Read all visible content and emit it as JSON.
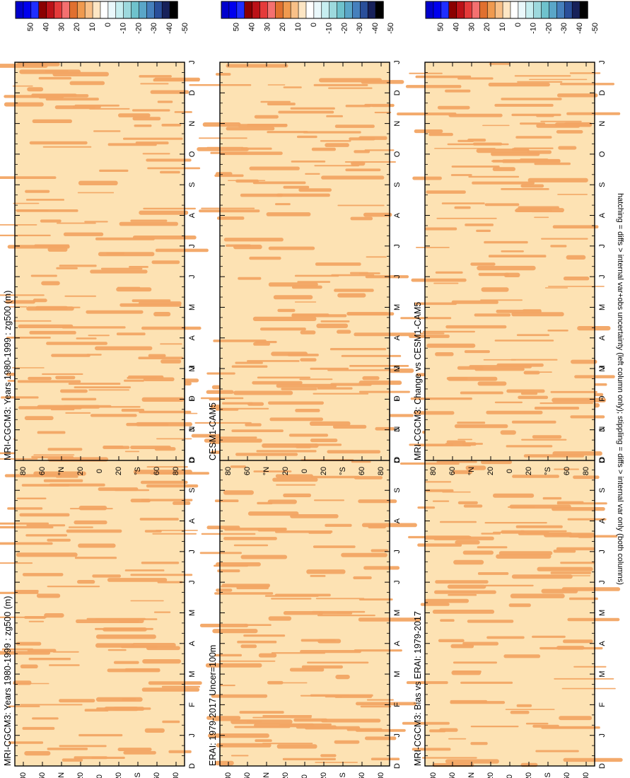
{
  "footnote": "hatching = diffs > internal var+obs uncertainty (left column only); stippling = diffs > internal var only (both columns)",
  "colorbar": {
    "labels": [
      "50",
      "40",
      "30",
      "20",
      "10",
      "0",
      "-10",
      "-20",
      "-30",
      "-40",
      "-50"
    ],
    "colors": [
      "#0000cc",
      "#0000ee",
      "#1f2eff",
      "#8b0000",
      "#bb1117",
      "#e53a3a",
      "#f47070",
      "#e0702f",
      "#f09a4f",
      "#f8c088",
      "#fde6c4",
      "#ffffff",
      "#eaf8fb",
      "#c7eef0",
      "#9dd9dd",
      "#6fc2cc",
      "#5aa6c8",
      "#4680bd",
      "#2a4f9a",
      "#17215a",
      "#000000"
    ]
  },
  "fill_colors": {
    "light": "#fde2b3",
    "dark": "#f2a564"
  },
  "chart_data": [
    {
      "type": "heatmap",
      "title": "MRI-CGCM3: Years 1980-1999 : zg500 (m)",
      "x_ticks": [
        "D",
        "J",
        "F",
        "M",
        "A",
        "M",
        "J",
        "J",
        "A",
        "S",
        "O",
        "N",
        "D",
        "J"
      ],
      "y_ticks": [
        "80",
        "60",
        "°N",
        "20",
        "0",
        "20",
        "°S",
        "60",
        "80"
      ],
      "values_range": [
        -50,
        50
      ]
    },
    {
      "type": "heatmap",
      "title": "MRI-CGCM3: Years 1980-1999 : zg500 (m)",
      "x_ticks": [
        "D",
        "J",
        "F",
        "M",
        "A",
        "M",
        "J",
        "J",
        "A",
        "S",
        "O",
        "N",
        "D",
        "J"
      ],
      "y_ticks": [
        "80",
        "60",
        "°N",
        "20",
        "0",
        "20",
        "°S",
        "60",
        "80"
      ],
      "values_range": [
        -50,
        50
      ]
    },
    {
      "type": "heatmap",
      "title": "ERAI: 1979-2017 Uncer=100m",
      "x_ticks": [
        "D",
        "J",
        "F",
        "M",
        "A",
        "M",
        "J",
        "J",
        "A",
        "S",
        "O",
        "N",
        "D",
        "J"
      ],
      "y_ticks": [
        "80",
        "60",
        "°N",
        "20",
        "0",
        "20",
        "°S",
        "60",
        "80"
      ],
      "values_range": [
        -50,
        50
      ]
    },
    {
      "type": "heatmap",
      "title": "CESM1-CAM5",
      "x_ticks": [
        "D",
        "J",
        "F",
        "M",
        "A",
        "M",
        "J",
        "J",
        "A",
        "S",
        "O",
        "N",
        "D",
        "J"
      ],
      "y_ticks": [
        "80",
        "60",
        "°N",
        "20",
        "0",
        "20",
        "°S",
        "60",
        "80"
      ],
      "values_range": [
        -50,
        50
      ]
    },
    {
      "type": "heatmap",
      "title": "MRI-CGCM3: Bias vs ERAI: 1979-2017",
      "x_ticks": [
        "D",
        "J",
        "F",
        "M",
        "A",
        "M",
        "J",
        "J",
        "A",
        "S",
        "O",
        "N",
        "D",
        "J"
      ],
      "y_ticks": [
        "80",
        "60",
        "°N",
        "20",
        "0",
        "20",
        "°S",
        "60",
        "80"
      ],
      "values_range": [
        -50,
        50
      ]
    },
    {
      "type": "heatmap",
      "title": "MRI-CGCM3: Change vs CESM1-CAM5",
      "x_ticks": [
        "D",
        "J",
        "F",
        "M",
        "A",
        "M",
        "J",
        "J",
        "A",
        "S",
        "O",
        "N",
        "D",
        "J"
      ],
      "y_ticks": [
        "80",
        "60",
        "°N",
        "20",
        "0",
        "20",
        "°S",
        "60",
        "80"
      ],
      "values_range": [
        -50,
        50
      ]
    }
  ]
}
